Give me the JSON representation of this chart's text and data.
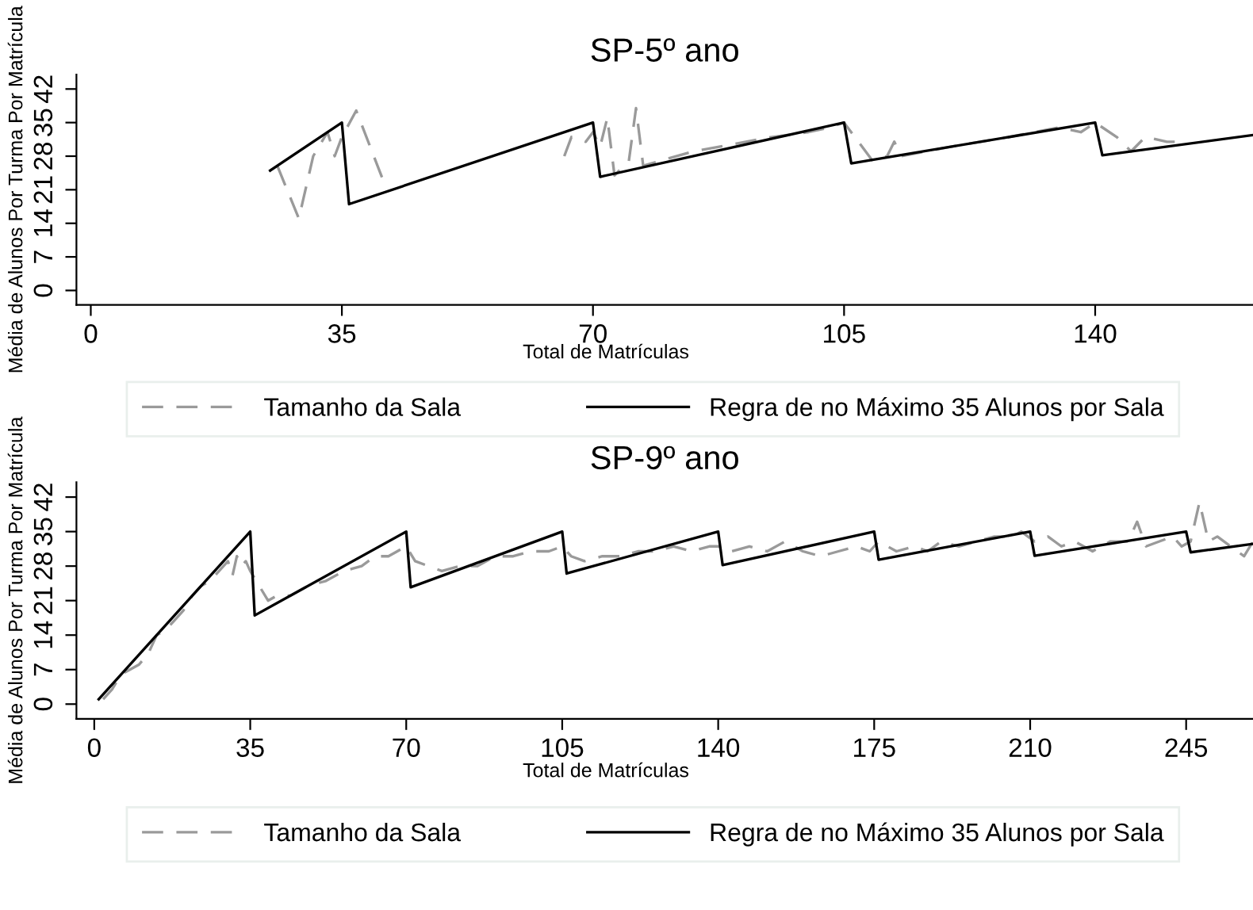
{
  "chart_data": [
    {
      "type": "line",
      "title": "SP-5º ano",
      "xlabel": "Total de Matrículas",
      "ylabel": "Média de Alunos Por Turma Por Matrícula",
      "xlim": [
        -2,
        162
      ],
      "xticks": [
        0,
        35,
        70,
        105,
        140
      ],
      "ylim": [
        -3,
        45
      ],
      "yticks": [
        0,
        7,
        14,
        21,
        28,
        35,
        42
      ],
      "grid": false,
      "legend": "bottom",
      "series": [
        {
          "name": "Tamanho da Sala",
          "color": "#9a9a9a",
          "line_style": "dashed",
          "x": [
            26,
            29,
            31,
            33,
            34,
            35,
            37,
            41,
            55,
            66,
            67,
            69,
            70,
            71,
            72,
            73,
            75,
            76,
            77,
            84,
            95,
            100,
            103,
            105,
            107,
            109,
            111,
            112,
            113,
            120,
            128,
            135,
            138,
            140,
            143,
            145,
            147,
            150,
            152
          ],
          "values": [
            26,
            15,
            28,
            33,
            28,
            32,
            37.5,
            22,
            null,
            28,
            32,
            31,
            33,
            30,
            36,
            24,
            27,
            38,
            26,
            29,
            32,
            33,
            34,
            35,
            31,
            27,
            28,
            31,
            28,
            30,
            32,
            34,
            33,
            35,
            32,
            29,
            32,
            31,
            31
          ]
        },
        {
          "name": "Regra de no Máximo 35 Alunos por Sala",
          "color": "#000000",
          "line_style": "solid",
          "x": [
            25,
            35,
            36,
            70,
            71,
            105,
            106,
            140,
            141,
            162
          ],
          "values": [
            25,
            35,
            18,
            35,
            23.7,
            35,
            26.5,
            35,
            28.2,
            32.4
          ]
        }
      ]
    },
    {
      "type": "line",
      "title": "SP-9º ano",
      "xlabel": "Total de Matrículas",
      "ylabel": "Média de Alunos Por Turma Por Matrícula",
      "xlim": [
        -4,
        260
      ],
      "xticks": [
        0,
        35,
        70,
        105,
        140,
        175,
        210,
        245
      ],
      "ylim": [
        -3,
        45
      ],
      "yticks": [
        0,
        7,
        14,
        21,
        28,
        35,
        42
      ],
      "grid": false,
      "legend": "bottom",
      "series": [
        {
          "name": "Tamanho da Sala",
          "color": "#9a9a9a",
          "line_style": "dashed",
          "x": [
            2,
            4,
            6,
            8,
            10,
            12,
            14,
            16,
            18,
            20,
            22,
            24,
            26,
            28,
            30,
            31,
            32,
            33,
            34,
            35,
            37,
            39,
            41,
            44,
            48,
            52,
            56,
            60,
            63,
            66,
            68,
            70,
            72,
            75,
            78,
            82,
            86,
            90,
            94,
            98,
            102,
            105,
            107,
            110,
            114,
            118,
            122,
            126,
            130,
            134,
            138,
            140,
            143,
            147,
            151,
            155,
            159,
            163,
            167,
            171,
            174,
            176,
            180,
            184,
            187,
            190,
            194,
            198,
            202,
            206,
            208,
            211,
            214,
            217,
            220,
            224,
            228,
            232,
            234,
            236,
            239,
            242,
            244,
            246,
            248,
            250,
            252,
            255,
            258,
            260
          ],
          "values": [
            1,
            3,
            6,
            7,
            8,
            10,
            14,
            15,
            17,
            19,
            22,
            24,
            25,
            27,
            29,
            26,
            30,
            28,
            29,
            27,
            24,
            21,
            22,
            22,
            24,
            25,
            27,
            28,
            30,
            30,
            31,
            32,
            29,
            28,
            27,
            28,
            28,
            30,
            30,
            31,
            31,
            32,
            30,
            29,
            30,
            30,
            31,
            31,
            32,
            31,
            32,
            32,
            31,
            32,
            31,
            33,
            31,
            30,
            31,
            32,
            31,
            33,
            31,
            32,
            31,
            33,
            32,
            33,
            34,
            34,
            35,
            33,
            34,
            32,
            33,
            31,
            33,
            33,
            37,
            32,
            33,
            34,
            32,
            33,
            41,
            33,
            34,
            32,
            30,
            33
          ]
        },
        {
          "name": "Regra de no Máximo 35 Alunos por Sala",
          "color": "#000000",
          "line_style": "solid",
          "x": [
            1,
            35,
            36,
            70,
            71,
            105,
            106,
            140,
            141,
            175,
            176,
            210,
            211,
            245,
            246,
            260
          ],
          "values": [
            1,
            35,
            18,
            35,
            23.7,
            35,
            26.5,
            35,
            28.2,
            35,
            29.3,
            35,
            30.1,
            35,
            30.8,
            32.5
          ]
        }
      ]
    }
  ]
}
